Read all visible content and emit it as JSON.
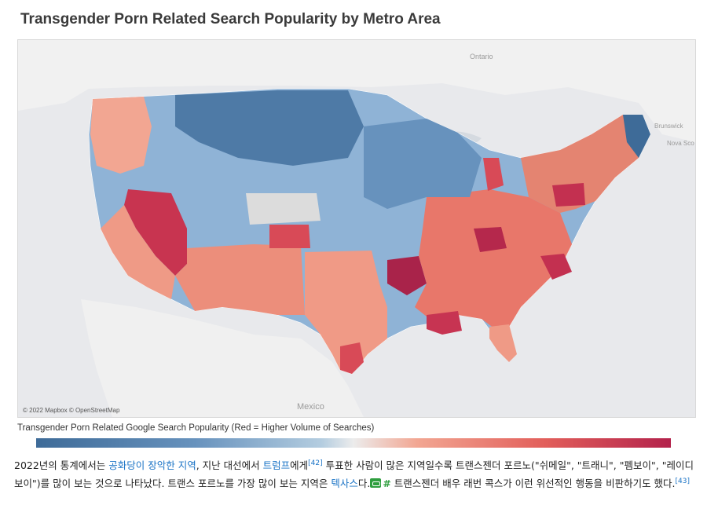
{
  "title": "Transgender Porn Related Search Popularity by Metro Area",
  "map": {
    "credit": "© 2022 Mapbox © OpenStreetMap",
    "place_labels": [
      "Ontario",
      "Brunswick",
      "Nova Sco",
      "Mexico"
    ],
    "colors": {
      "dark_blue": "#3e6b98",
      "mid_blue": "#6792bd",
      "light_blue": "#a9c5de",
      "neutral": "#e8e8e8",
      "light_red": "#f2a692",
      "mid_red": "#e25f5b",
      "dark_red": "#b3224b",
      "land": "#f4f4f4",
      "water": "#d9dde3"
    }
  },
  "legend": {
    "title": "Transgender Porn Related Google Search Popularity (Red = Higher Volume of Searches)"
  },
  "caption": {
    "p1": "2022년의 통계에서는 ",
    "link1": "공화당이 장악한 지역",
    "p2": ", 지난 대선에서 ",
    "link2": "트럼프",
    "p3": "에게",
    "ref1": "[42]",
    "p4": " 투표한 사람이 많은 지역일수록 트랜스젠더 포르노(\"쉬메일\", \"트래니\", \"펨보이\", \"레이디보이\")를 많이 보는 것으로 나타났다. 트랜스 포르노를 가장 많이 보는 지역은 ",
    "link3": "텍사스",
    "p5": "다.",
    "hash": "#",
    "p6": " 트랜스젠더 배우 래번 콕스가 이런 위선적인 행동을 비판하기도 했다.",
    "ref2": "[43]"
  }
}
